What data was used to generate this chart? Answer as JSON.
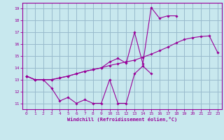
{
  "bg_color": "#c8e8ee",
  "grid_color": "#99bbcc",
  "line_color": "#990099",
  "xlim": [
    -0.5,
    23.5
  ],
  "ylim": [
    10.5,
    19.5
  ],
  "xticks": [
    0,
    1,
    2,
    3,
    4,
    5,
    6,
    7,
    8,
    9,
    10,
    11,
    12,
    13,
    14,
    15,
    16,
    17,
    18,
    19,
    20,
    21,
    22,
    23
  ],
  "yticks": [
    11,
    12,
    13,
    14,
    15,
    16,
    17,
    18,
    19
  ],
  "xlabel": "Windchill (Refroidissement éolien,°C)",
  "curve_bottom_x": [
    0,
    1,
    2,
    3,
    4,
    5,
    6,
    7,
    8,
    9,
    10,
    11,
    12,
    13,
    14,
    15
  ],
  "curve_bottom_y": [
    13.3,
    13.0,
    13.0,
    12.3,
    11.2,
    11.5,
    11.0,
    11.3,
    11.0,
    11.0,
    13.0,
    11.0,
    11.0,
    13.5,
    14.15,
    13.5
  ],
  "curve_mid_x": [
    0,
    1,
    2,
    3,
    4,
    5,
    6,
    7,
    8,
    9,
    10,
    11,
    12,
    13,
    14,
    15,
    16,
    17,
    18,
    19,
    20,
    21,
    22,
    23
  ],
  "curve_mid_y": [
    13.3,
    13.0,
    13.0,
    13.0,
    13.15,
    13.3,
    13.5,
    13.7,
    13.85,
    14.0,
    14.2,
    14.35,
    14.5,
    14.65,
    14.9,
    15.15,
    15.45,
    15.75,
    16.1,
    16.4,
    16.55,
    16.65,
    16.7,
    15.3
  ],
  "curve_top_x": [
    0,
    1,
    2,
    3,
    4,
    5,
    6,
    7,
    8,
    9,
    10,
    11,
    12,
    13,
    14,
    15,
    16,
    17,
    18
  ],
  "curve_top_y": [
    13.3,
    13.0,
    13.0,
    13.0,
    13.15,
    13.3,
    13.5,
    13.7,
    13.85,
    14.0,
    14.5,
    14.8,
    14.4,
    17.0,
    14.35,
    19.1,
    18.2,
    18.4,
    18.4
  ]
}
